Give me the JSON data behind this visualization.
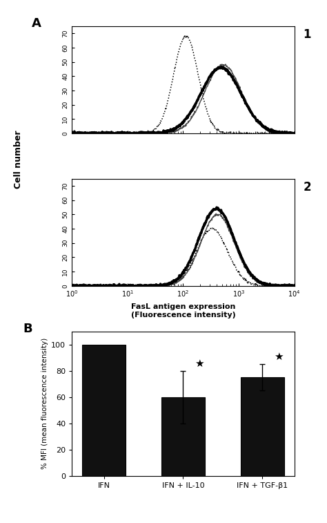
{
  "panel_A_label": "A",
  "panel_B_label": "B",
  "subplot1_label": "1",
  "subplot2_label": "2",
  "flow_xlabel": "FasL antigen expression\n(Fluorescence intensity)",
  "flow_ylabel": "Cell number",
  "flow_yticks": [
    0,
    10,
    20,
    30,
    40,
    50,
    60,
    70
  ],
  "flow_ylim": [
    0,
    75
  ],
  "bar_categories": [
    "IFN",
    "IFN + IL-10",
    "IFN + TGF-β1"
  ],
  "bar_values": [
    100,
    60,
    75
  ],
  "bar_errors": [
    0,
    20,
    10
  ],
  "bar_color": "#111111",
  "bar_ylabel": "% MFI (mean fluorescence intensity)",
  "bar_ylim": [
    0,
    110
  ],
  "bar_yticks": [
    0,
    20,
    40,
    60,
    80,
    100
  ],
  "figure_bg": "#ffffff",
  "line_dotted_color": "#000000",
  "line_thin_color": "#444444",
  "line_thick_color": "#000000"
}
